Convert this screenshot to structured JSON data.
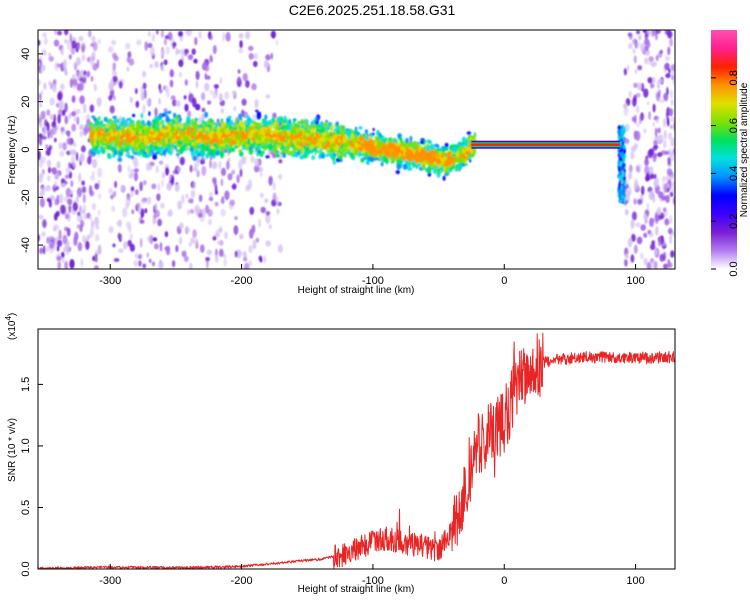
{
  "title": "C2E6.2025.251.18.58.G31",
  "chart_data": [
    {
      "type": "heatmap",
      "id": "spectrogram",
      "xlabel": "Height of straight line (km)",
      "ylabel": "Frequency (Hz)",
      "xlim": [
        -355,
        130
      ],
      "ylim": [
        -50,
        50
      ],
      "x_ticks": [
        -300,
        -200,
        -100,
        0,
        100
      ],
      "y_ticks": [
        -40,
        -20,
        0,
        20,
        40
      ],
      "grid": false,
      "colorbar": {
        "label": "Normalized spectral amplitude",
        "range": [
          0,
          1
        ],
        "ticks": [
          "0.0",
          "0.2",
          "0.4",
          "0.6",
          "0.8"
        ],
        "tick_values": [
          0.0,
          0.2,
          0.4,
          0.6,
          0.8
        ],
        "colors": [
          "#ffffff",
          "#b27cf0",
          "#7a1fd4",
          "#3a00ff",
          "#0000ff",
          "#0090ff",
          "#00e0e0",
          "#00e060",
          "#7fe000",
          "#e0e000",
          "#ff9000",
          "#ff2000",
          "#ff2090",
          "#ff50b0"
        ]
      },
      "ridge": {
        "x": [
          -310,
          -280,
          -250,
          -220,
          -200,
          -180,
          -160,
          -140,
          -120,
          -100,
          -80,
          -60,
          -45,
          -30,
          -25,
          0,
          50,
          88
        ],
        "y": [
          6,
          5,
          6,
          5,
          6,
          6,
          5,
          4,
          3,
          1,
          -1,
          -3,
          -5,
          -2,
          2,
          2,
          2,
          2
        ]
      },
      "tone": {
        "x": [
          -25,
          88
        ],
        "y": 2,
        "color": "#ff2000"
      }
    },
    {
      "type": "line",
      "id": "snr",
      "xlabel": "Height of straight line (km)",
      "ylabel": "SNR (10 * v/v)",
      "scale_label": "(x10",
      "scale_exponent": "4",
      "scale_suffix": ")",
      "xlim": [
        -355,
        130
      ],
      "ylim": [
        0,
        1.95
      ],
      "x_ticks": [
        -300,
        -200,
        -100,
        0,
        100
      ],
      "y_ticks": [
        "0.0",
        "0.5",
        "1.0",
        "1.5"
      ],
      "y_tick_values": [
        0.0,
        0.5,
        1.0,
        1.5
      ],
      "grid": false,
      "series": [
        {
          "color": "#e82424",
          "x": [
            -355,
            -300,
            -250,
            -200,
            -180,
            -160,
            -140,
            -120,
            -105,
            -100,
            -90,
            -80,
            -70,
            -60,
            -50,
            -40,
            -30,
            -25,
            -20,
            -15,
            -10,
            -5,
            0,
            5,
            10,
            20,
            30,
            40,
            60,
            80,
            100,
            110,
            120,
            130
          ],
          "y": [
            0.005,
            0.015,
            0.01,
            0.02,
            0.04,
            0.06,
            0.08,
            0.12,
            0.2,
            0.22,
            0.25,
            0.22,
            0.2,
            0.18,
            0.15,
            0.3,
            0.6,
            0.85,
            1.0,
            1.05,
            1.1,
            1.15,
            1.2,
            1.35,
            1.5,
            1.62,
            1.68,
            1.7,
            1.72,
            1.72,
            1.72,
            1.71,
            1.72,
            1.72
          ]
        }
      ]
    }
  ]
}
